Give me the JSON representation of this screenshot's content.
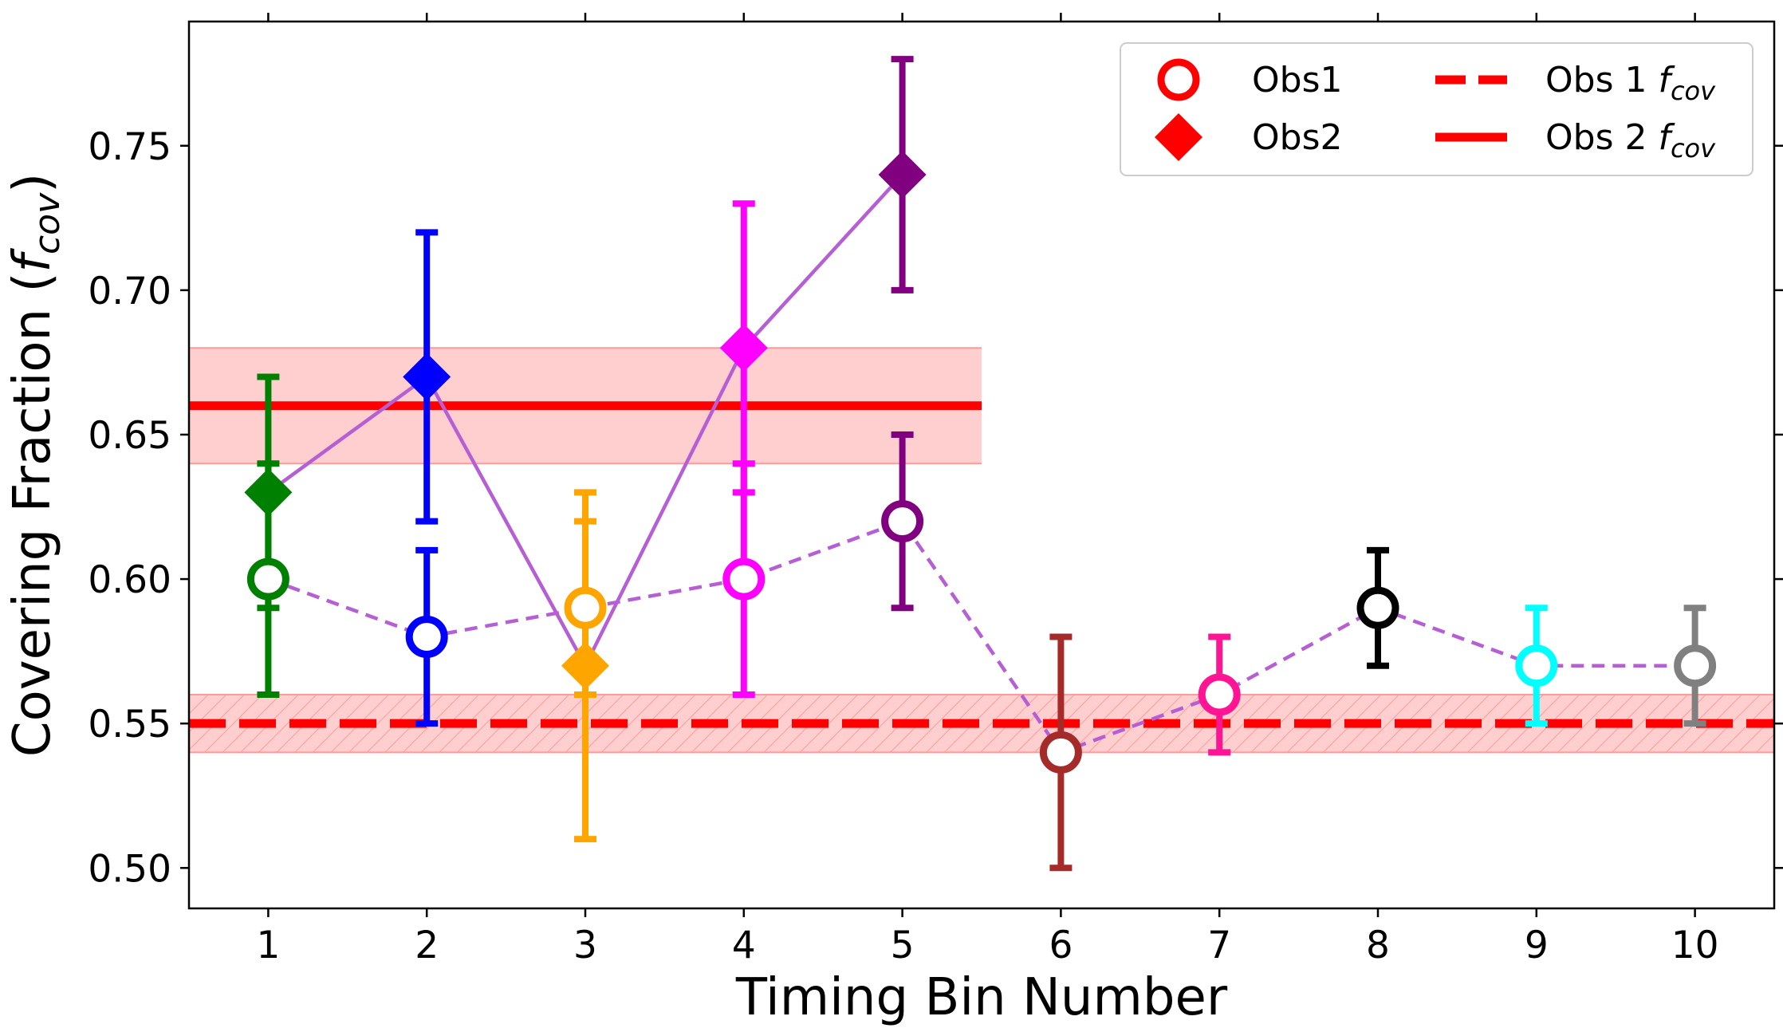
{
  "chart_data": {
    "type": "scatter",
    "title": "",
    "xlabel": "Timing Bin Number",
    "ylabel": {
      "main": "Covering Fraction (",
      "italic": "f",
      "sub": "cov",
      "close": ")"
    },
    "xlim": [
      0.5,
      10.5
    ],
    "ylim": [
      0.486,
      0.793
    ],
    "xticks": [
      1,
      2,
      3,
      4,
      5,
      6,
      7,
      8,
      9,
      10
    ],
    "xtick_labels": [
      "1",
      "2",
      "3",
      "4",
      "5",
      "6",
      "7",
      "8",
      "9",
      "10"
    ],
    "yticks": [
      0.5,
      0.55,
      0.6,
      0.65,
      0.7,
      0.75
    ],
    "ytick_labels": [
      "0.50",
      "0.55",
      "0.60",
      "0.65",
      "0.70",
      "0.75"
    ],
    "series": [
      {
        "name": "Obs1",
        "marker": "open-circle",
        "line_style": "dashed",
        "line_color": "#b65fd4",
        "points": [
          {
            "x": 1,
            "y": 0.6,
            "low": 0.56,
            "high": 0.64,
            "color": "#008000"
          },
          {
            "x": 2,
            "y": 0.58,
            "low": 0.55,
            "high": 0.61,
            "color": "#0000ff"
          },
          {
            "x": 3,
            "y": 0.59,
            "low": 0.56,
            "high": 0.62,
            "color": "#ffa500"
          },
          {
            "x": 4,
            "y": 0.6,
            "low": 0.56,
            "high": 0.64,
            "color": "#ff00ff"
          },
          {
            "x": 5,
            "y": 0.62,
            "low": 0.59,
            "high": 0.65,
            "color": "#800080"
          },
          {
            "x": 6,
            "y": 0.54,
            "low": 0.5,
            "high": 0.58,
            "color": "#a52a2a"
          },
          {
            "x": 7,
            "y": 0.56,
            "low": 0.54,
            "high": 0.58,
            "color": "#ff1493"
          },
          {
            "x": 8,
            "y": 0.59,
            "low": 0.57,
            "high": 0.61,
            "color": "#000000"
          },
          {
            "x": 9,
            "y": 0.57,
            "low": 0.55,
            "high": 0.59,
            "color": "#00ffff"
          },
          {
            "x": 10,
            "y": 0.57,
            "low": 0.55,
            "high": 0.59,
            "color": "#808080"
          }
        ]
      },
      {
        "name": "Obs2",
        "marker": "filled-diamond",
        "line_style": "solid",
        "line_color": "#b65fd4",
        "points": [
          {
            "x": 1,
            "y": 0.63,
            "low": 0.59,
            "high": 0.67,
            "color": "#008000"
          },
          {
            "x": 2,
            "y": 0.67,
            "low": 0.62,
            "high": 0.72,
            "color": "#0000ff"
          },
          {
            "x": 3,
            "y": 0.57,
            "low": 0.51,
            "high": 0.63,
            "color": "#ffa500"
          },
          {
            "x": 4,
            "y": 0.68,
            "low": 0.63,
            "high": 0.73,
            "color": "#ff00ff"
          },
          {
            "x": 5,
            "y": 0.74,
            "low": 0.7,
            "high": 0.78,
            "color": "#800080"
          }
        ]
      }
    ],
    "reference_lines": [
      {
        "name": "Obs 1 f_cov",
        "value": 0.55,
        "band": [
          0.54,
          0.56
        ],
        "x_range": [
          0.5,
          10.5
        ],
        "style": "dashed",
        "hatched": true,
        "color": "#ff0000",
        "band_color": "#ffcccc"
      },
      {
        "name": "Obs 2 f_cov",
        "value": 0.66,
        "band": [
          0.64,
          0.68
        ],
        "x_range": [
          0.5,
          5.5
        ],
        "style": "solid",
        "hatched": false,
        "color": "#ff0000",
        "band_color": "#ffcccc"
      }
    ],
    "legend": {
      "position": "top-right",
      "entries": [
        {
          "label": "Obs1",
          "marker": "open-circle",
          "color": "#ff0000"
        },
        {
          "label": "Obs2",
          "marker": "filled-diamond",
          "color": "#ff0000"
        },
        {
          "label": "Obs 1 ",
          "label_italic": "f",
          "label_sub": "cov",
          "marker": "dashed-line",
          "color": "#ff0000"
        },
        {
          "label": "Obs 2 ",
          "label_italic": "f",
          "label_sub": "cov",
          "marker": "solid-line",
          "color": "#ff0000"
        }
      ]
    }
  }
}
